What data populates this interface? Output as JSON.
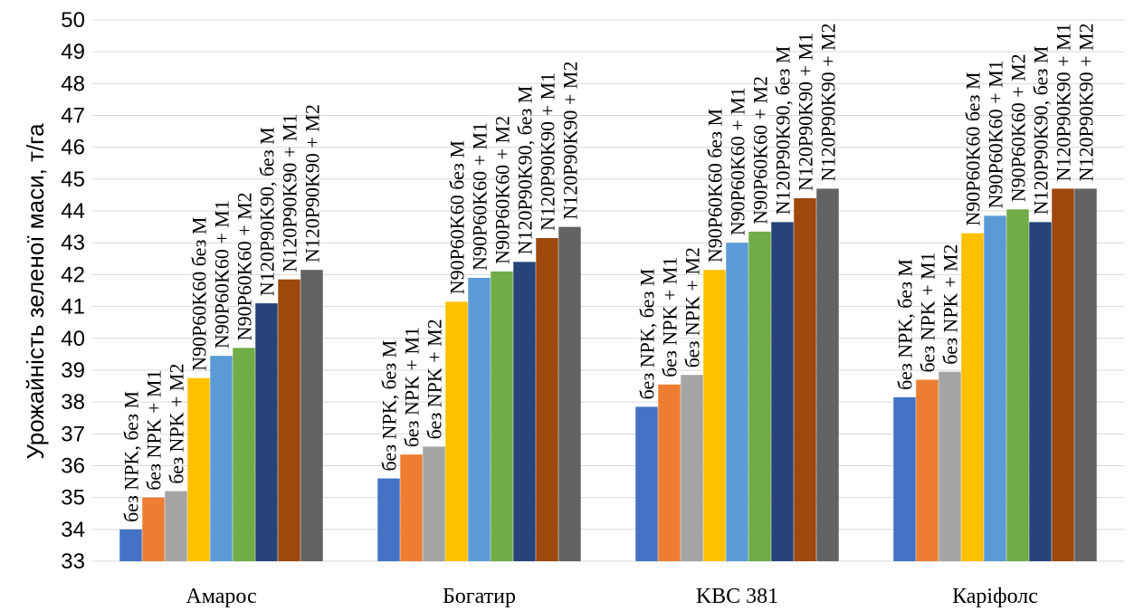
{
  "chart_data": {
    "type": "bar",
    "title": "",
    "xlabel": "",
    "ylabel": "Урожайність зеленої маси, т/га",
    "ylim": [
      33,
      50
    ],
    "yticks": [
      33,
      34,
      35,
      36,
      37,
      38,
      39,
      40,
      41,
      42,
      43,
      44,
      45,
      46,
      47,
      48,
      49,
      50
    ],
    "grid": true,
    "categories": [
      "Амарос",
      "Богатир",
      "KBC 381",
      "Каріфолс"
    ],
    "series": [
      {
        "color": "#4472c4",
        "values": [
          34.0,
          35.6,
          37.85,
          38.15
        ]
      },
      {
        "color": "#ed7d31",
        "values": [
          35.0,
          36.35,
          38.55,
          38.7
        ]
      },
      {
        "color": "#a5a5a5",
        "values": [
          35.2,
          36.6,
          38.85,
          38.95
        ]
      },
      {
        "color": "#ffc000",
        "values": [
          38.75,
          41.15,
          42.15,
          43.3
        ]
      },
      {
        "color": "#5b9bd5",
        "values": [
          39.45,
          41.9,
          43.0,
          43.85
        ]
      },
      {
        "color": "#70ad47",
        "values": [
          39.7,
          42.1,
          43.35,
          44.05
        ]
      },
      {
        "color": "#264478",
        "values": [
          41.1,
          42.4,
          43.65,
          43.65
        ]
      },
      {
        "color": "#9e480e",
        "values": [
          41.85,
          43.15,
          44.4,
          44.7
        ]
      },
      {
        "color": "#636363",
        "values": [
          42.15,
          43.5,
          44.7,
          44.7
        ]
      }
    ],
    "data_labels": [
      [
        "без NPK, без M",
        "без NPK + M1",
        "без NPK + M2",
        "N90P60K60 без M",
        "N90P60K60 + M1",
        "N90P60K60 + M2",
        "N120P90K90, без M",
        "N120P90K90 + M1",
        "N120P90K90 + M2"
      ],
      [
        "без NPK, без M",
        "без NPK + M1",
        "без NPK + M2",
        "N90P60K60 без M",
        "N90P60K60 + M1",
        "N90P60K60 + M2",
        "N120P90K90, без M",
        "N120P90K90 + M1",
        "N120P90K90 + M2"
      ],
      [
        "без NPK, без M",
        "без NPK + M1",
        "без NPK + M2",
        "N90P60K60 без M",
        "N90P60K60 + M1",
        "N90P60K60 + M2",
        "N120P90K90, без M",
        "N120P90K90 + M1",
        "N120P90K90 + M2"
      ],
      [
        "без NPK, без M",
        "без NPK + M1",
        "без NPK + M2",
        "N90P60K60 без M",
        "N90P60K60 + M1",
        "N90P60K60 + M2",
        "N120P90K90, без M",
        "N120P90K90 + M1",
        "N120P90K90 + M2"
      ]
    ]
  }
}
